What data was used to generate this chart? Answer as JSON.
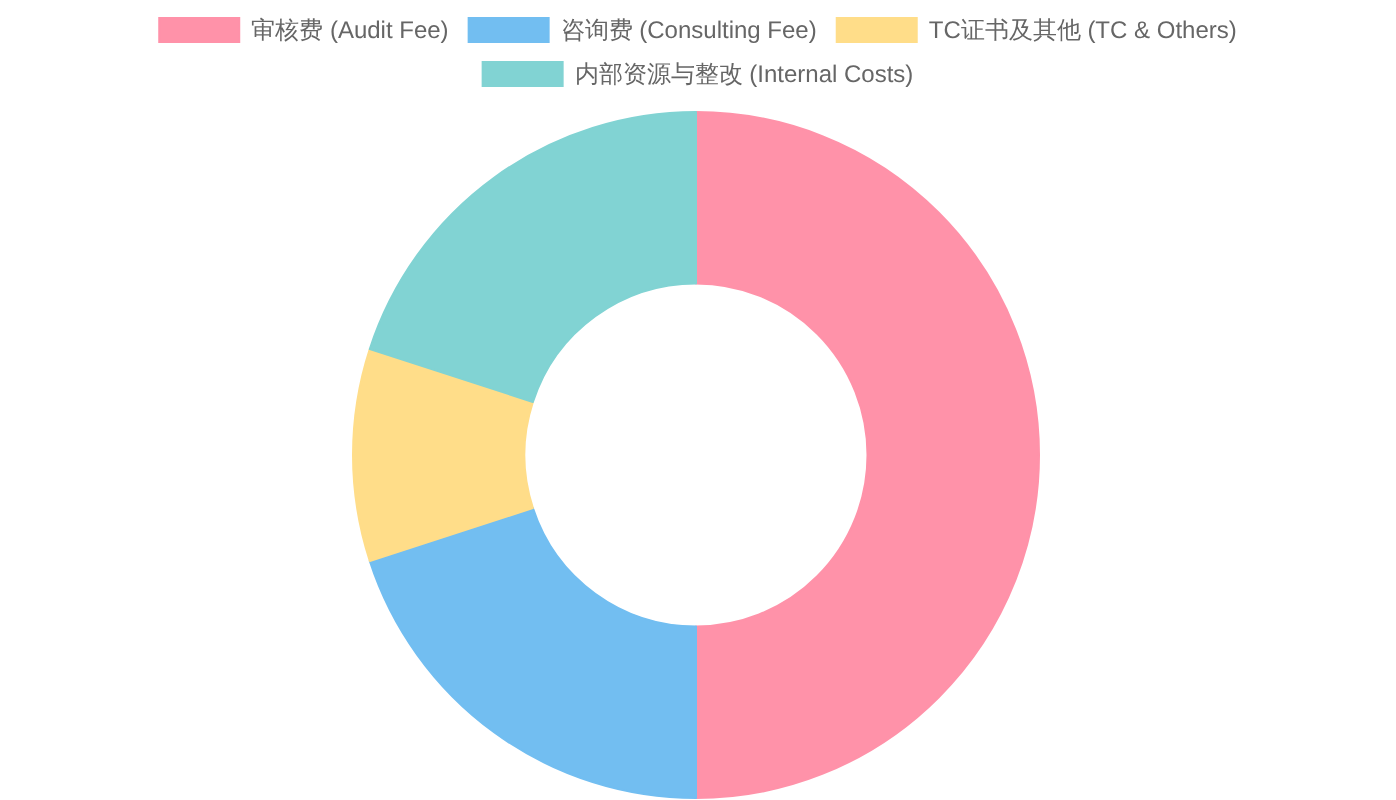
{
  "chart_data": {
    "type": "donut",
    "categories": [
      "审核费 (Audit Fee)",
      "咨询费 (Consulting Fee)",
      "TC证书及其他 (TC & Others)",
      "内部资源与整改 (Internal Costs)"
    ],
    "values": [
      50,
      20,
      10,
      20
    ],
    "colors": [
      "#ff92a9",
      "#72bef1",
      "#ffdd89",
      "#81d3d3"
    ],
    "legend": "top"
  }
}
